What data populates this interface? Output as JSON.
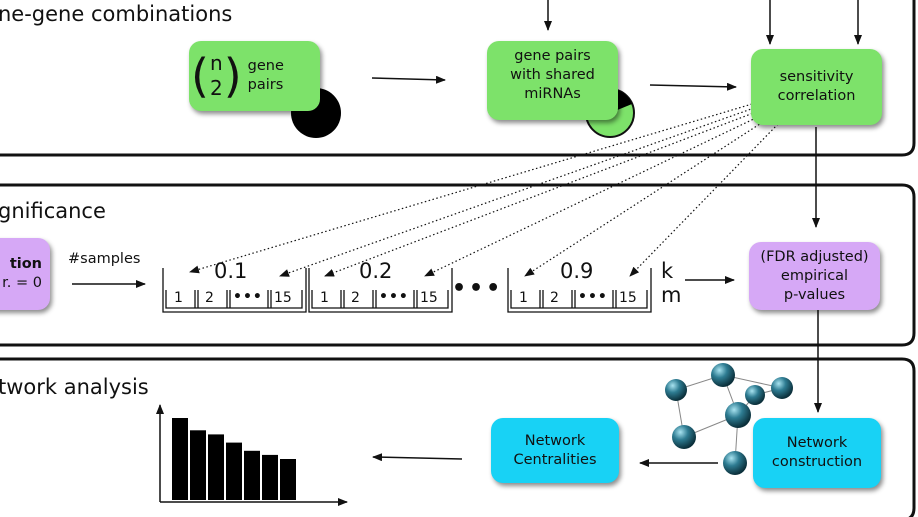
{
  "sections": {
    "top_title": "ne-gene combinations",
    "mid_title": "gnificance",
    "bottom_title": "twork analysis"
  },
  "nodes": {
    "gene_pairs_n": "n",
    "gene_pairs_2": "2",
    "gene_pairs_label": "gene\npairs",
    "shared_mirnas": "gene pairs\nwith shared\nmiRNAs",
    "sensitivity": "sensitivity\ncorrelation",
    "simulation_title": "tion",
    "simulation_sub": "r. = 0",
    "fdr": "(FDR adjusted)\nempirical\np-values",
    "centralities": "Network\nCentralities",
    "construction": "Network\nconstruction"
  },
  "labels": {
    "samples": "#samples",
    "k": "k",
    "m": "m",
    "ellipsis": "•••"
  },
  "bins": [
    {
      "value": "0.1",
      "cells": [
        "1",
        "2",
        "15"
      ]
    },
    {
      "value": "0.2",
      "cells": [
        "1",
        "2",
        "15"
      ]
    },
    {
      "value": "0.9",
      "cells": [
        "1",
        "2",
        "15"
      ]
    }
  ],
  "cell_dots": "•••",
  "colors": {
    "green": "#7de26a",
    "purple": "#d6a8f6",
    "cyan": "#18d2f5",
    "network_node": "#1e5b6e"
  },
  "chart_data": {
    "type": "bar",
    "values": [
      10,
      8.5,
      8,
      7,
      6,
      5.5,
      5
    ],
    "title": "",
    "xlabel": "",
    "ylabel": ""
  }
}
